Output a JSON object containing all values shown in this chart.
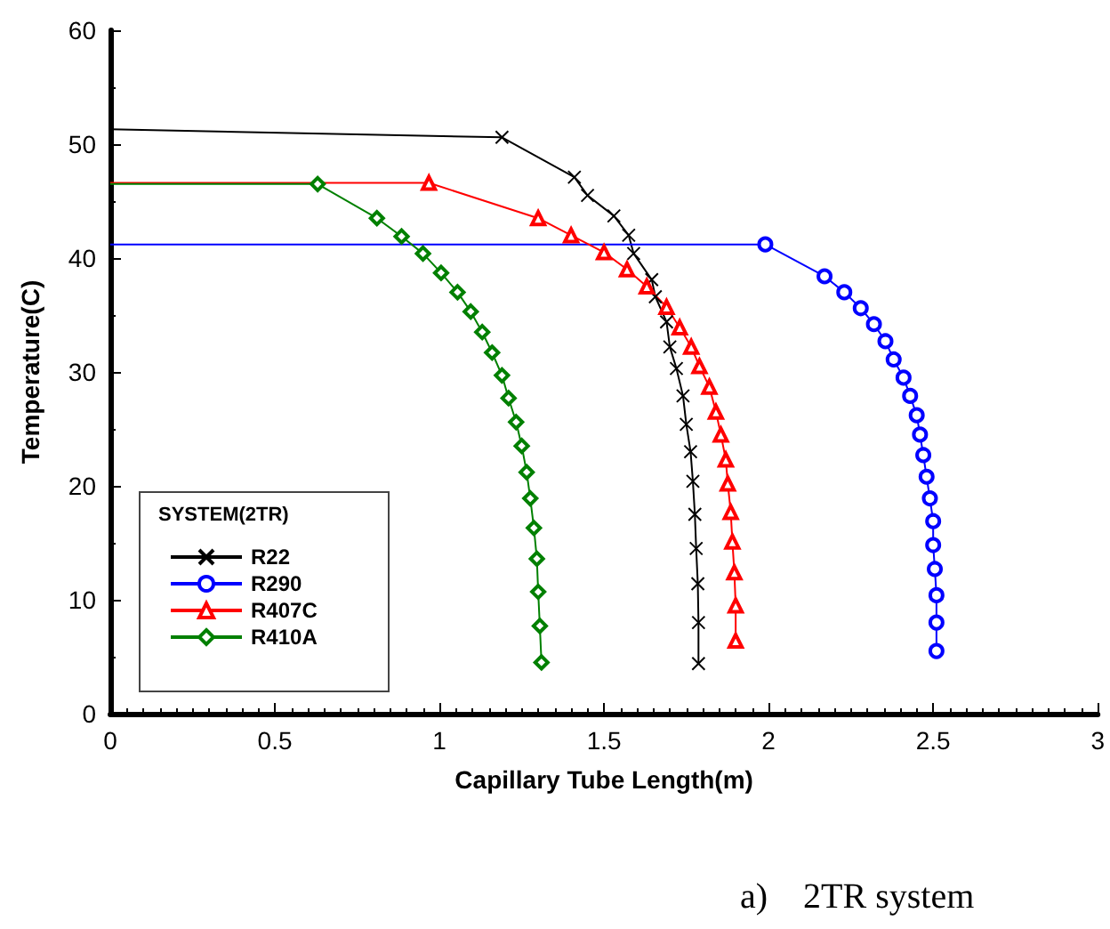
{
  "chart_data": {
    "type": "line",
    "xlabel": "Capillary Tube Length(m)",
    "ylabel": "Temperature(C)",
    "legend_title": "SYSTEM(2TR)",
    "legend": "bottom left",
    "grid": false,
    "line_style": "solid",
    "xlim": [
      0,
      3
    ],
    "xticks": [
      0,
      0.5,
      1,
      1.5,
      2,
      2.5,
      3
    ],
    "ylim": [
      0,
      60
    ],
    "yticks": [
      0,
      10,
      20,
      30,
      40,
      50,
      60
    ],
    "annotations": [
      "a)    2TR system"
    ],
    "series": [
      {
        "name": "R22",
        "color": "#000000",
        "marker": "cross",
        "x": [
          0,
          1.19,
          1.41,
          1.45,
          1.53,
          1.575,
          1.59,
          1.645,
          1.656,
          1.69,
          1.7,
          1.72,
          1.74,
          1.75,
          1.763,
          1.77,
          1.776,
          1.78,
          1.785,
          1.787,
          1.787
        ],
        "values": [
          51.3,
          50.6,
          47.1,
          45.5,
          43.7,
          42.0,
          40.4,
          38.1,
          36.6,
          34.4,
          32.2,
          30.3,
          27.9,
          25.4,
          23.0,
          20.4,
          17.5,
          14.5,
          11.4,
          8.0,
          4.4
        ]
      },
      {
        "name": "R290",
        "color": "#0000ff",
        "marker": "circle",
        "x": [
          0,
          1.99,
          2.17,
          2.23,
          2.28,
          2.32,
          2.355,
          2.38,
          2.41,
          2.43,
          2.45,
          2.46,
          2.47,
          2.48,
          2.49,
          2.5,
          2.5,
          2.505,
          2.51,
          2.51,
          2.51
        ],
        "values": [
          41.2,
          41.2,
          38.4,
          37.0,
          35.6,
          34.2,
          32.7,
          31.1,
          29.5,
          27.9,
          26.2,
          24.5,
          22.7,
          20.8,
          18.9,
          16.9,
          14.8,
          12.7,
          10.4,
          8.0,
          5.5
        ]
      },
      {
        "name": "R407C",
        "color": "#ff0000",
        "marker": "triangle",
        "x": [
          0,
          0.968,
          1.3,
          1.4,
          1.5,
          1.57,
          1.63,
          1.69,
          1.73,
          1.765,
          1.79,
          1.82,
          1.84,
          1.855,
          1.87,
          1.876,
          1.885,
          1.89,
          1.896,
          1.9,
          1.9
        ],
        "values": [
          46.6,
          46.6,
          43.5,
          42.0,
          40.5,
          39.0,
          37.5,
          35.7,
          33.9,
          32.2,
          30.5,
          28.7,
          26.5,
          24.5,
          22.3,
          20.2,
          17.7,
          15.1,
          12.4,
          9.5,
          6.4
        ]
      },
      {
        "name": "R410A",
        "color": "#008000",
        "marker": "diamond",
        "x": [
          0,
          0.63,
          0.81,
          0.885,
          0.95,
          1.005,
          1.055,
          1.095,
          1.13,
          1.16,
          1.19,
          1.21,
          1.233,
          1.25,
          1.265,
          1.276,
          1.287,
          1.296,
          1.3,
          1.305,
          1.31
        ],
        "values": [
          46.5,
          46.5,
          43.5,
          41.9,
          40.4,
          38.7,
          37.0,
          35.3,
          33.5,
          31.7,
          29.7,
          27.7,
          25.6,
          23.5,
          21.2,
          18.9,
          16.3,
          13.6,
          10.7,
          7.7,
          4.5
        ]
      }
    ]
  }
}
